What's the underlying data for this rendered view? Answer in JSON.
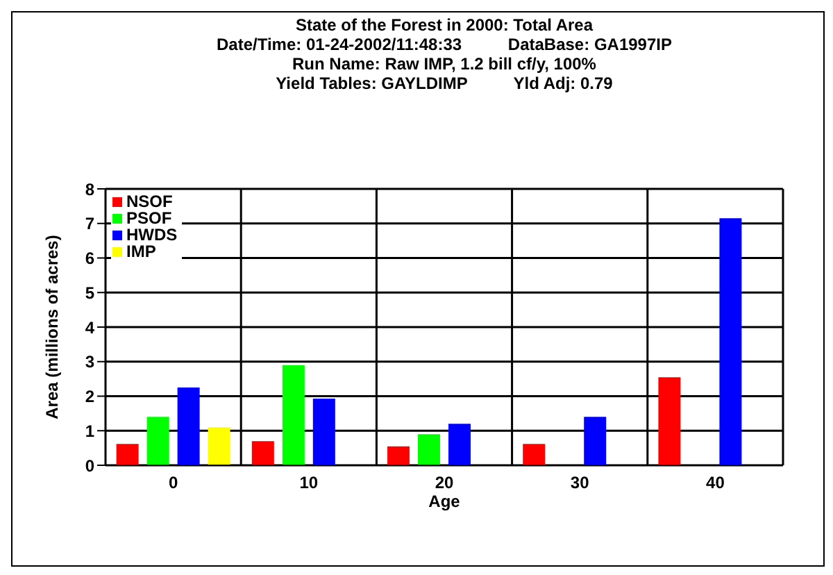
{
  "chart_data": {
    "type": "bar",
    "title": "State of the Forest in 2000: Total Area",
    "subtitle": "Date/Time: 01-24-2002/11:48:33          DataBase: GA1997IP\nRun Name: Raw IMP, 1.2 bill cf/y, 100%\nYield Tables: GAYLDIMP          Yld Adj: 0.79",
    "xlabel": "Age",
    "ylabel": "Area (millions of acres)",
    "categories": [
      "0",
      "10",
      "20",
      "30",
      "40"
    ],
    "series": [
      {
        "name": "NSOF",
        "color": "#ff0000",
        "values": [
          0.62,
          0.7,
          0.55,
          0.62,
          2.55
        ]
      },
      {
        "name": "PSOF",
        "color": "#00ff00",
        "values": [
          1.4,
          2.9,
          0.9,
          null,
          null
        ]
      },
      {
        "name": "HWDS",
        "color": "#0000ff",
        "values": [
          2.25,
          1.93,
          1.2,
          1.4,
          7.15
        ]
      },
      {
        "name": "IMP",
        "color": "#ffff00",
        "values": [
          1.1,
          null,
          null,
          null,
          null
        ]
      }
    ],
    "ylim": [
      0,
      8
    ],
    "yticks": [
      0,
      1,
      2,
      3,
      4,
      5,
      6,
      7,
      8
    ],
    "grid": true,
    "legend": "top left"
  }
}
